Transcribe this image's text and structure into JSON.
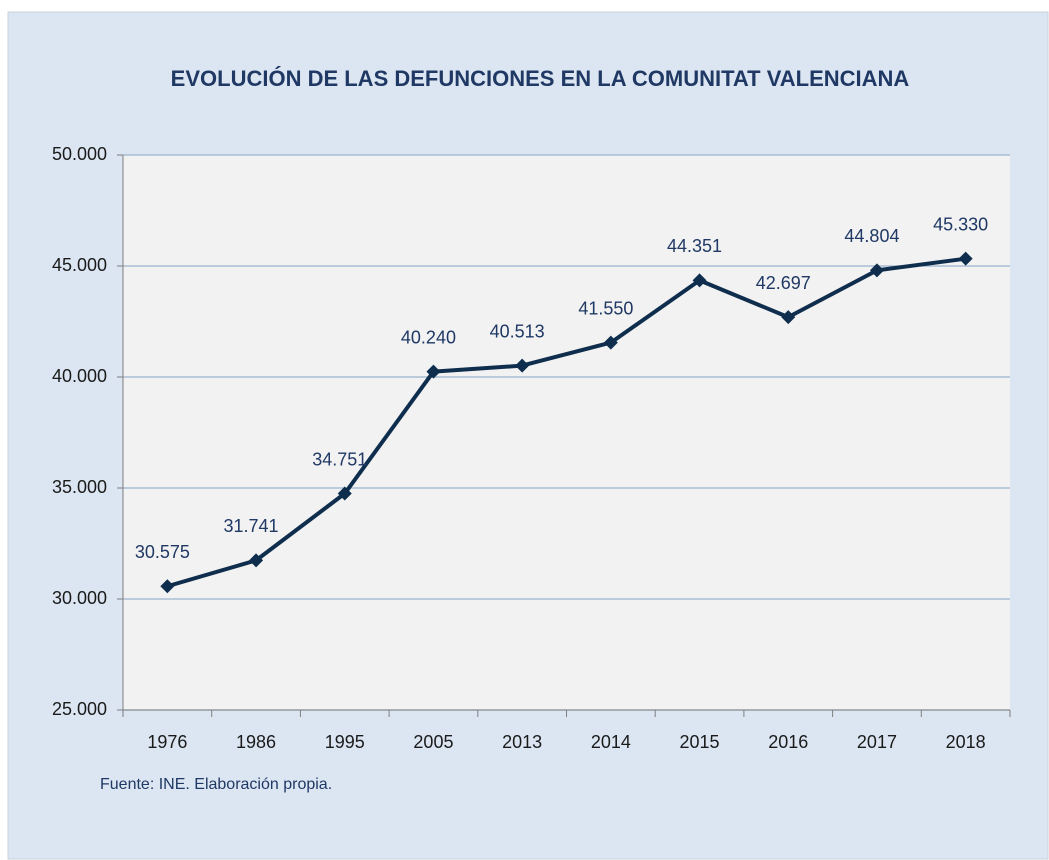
{
  "chart_data": {
    "type": "line",
    "title": "EVOLUCIÓN DE LAS DEFUNCIONES EN LA COMUNITAT VALENCIANA",
    "categories": [
      "1976",
      "1986",
      "1995",
      "2005",
      "2013",
      "2014",
      "2015",
      "2016",
      "2017",
      "2018"
    ],
    "values": [
      30575,
      31741,
      34751,
      40240,
      40513,
      41550,
      44351,
      42697,
      44804,
      45330
    ],
    "value_labels": [
      "30.575",
      "31.741",
      "34.751",
      "40.240",
      "40.513",
      "41.550",
      "44.351",
      "42.697",
      "44.804",
      "45.330"
    ],
    "color": "#0f2d4d",
    "ylim": [
      25000,
      50000
    ],
    "yticks": [
      {
        "value": 25000,
        "label": "25.000"
      },
      {
        "value": 30000,
        "label": "30.000"
      },
      {
        "value": 35000,
        "label": "35.000"
      },
      {
        "value": 40000,
        "label": "40.000"
      },
      {
        "value": 45000,
        "label": "45.000"
      },
      {
        "value": 50000,
        "label": "50.000"
      }
    ],
    "grid": true,
    "source": "Fuente: INE. Elaboración propia."
  }
}
